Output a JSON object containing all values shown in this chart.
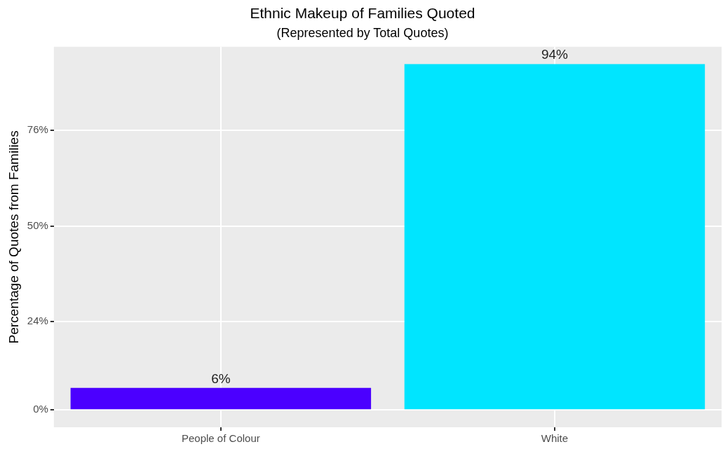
{
  "chart_data": {
    "type": "bar",
    "title": "Ethnic Makeup of Families Quoted",
    "subtitle": "(Represented by Total Quotes)",
    "ylabel": "Percentage of Quotes from Families",
    "categories": [
      "People of Colour",
      "White"
    ],
    "values": [
      6,
      94
    ],
    "colors": [
      "#4b00ff",
      "#00e5ff"
    ],
    "value_labels": [
      "6%",
      "94%"
    ],
    "ylim": [
      -4.7,
      98.7
    ],
    "yticks": [
      {
        "value": 0,
        "label": "0%"
      },
      {
        "value": 24,
        "label": "24%"
      },
      {
        "value": 50,
        "label": "50%"
      },
      {
        "value": 76,
        "label": "76%"
      }
    ],
    "grid": true,
    "legend": false
  }
}
